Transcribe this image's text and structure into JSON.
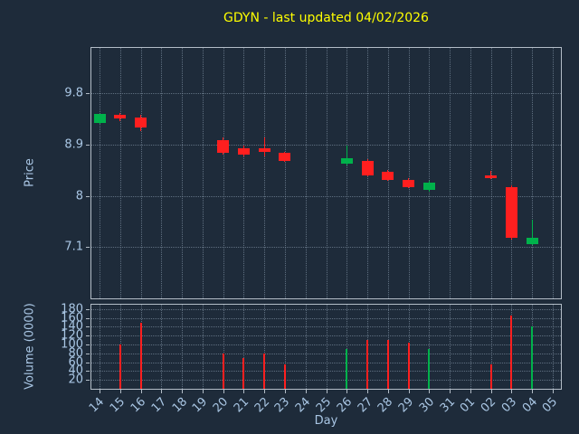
{
  "colors": {
    "up": "#00b24b",
    "down": "#ff1f1f",
    "background": "#1e2b3a",
    "grid": "#96a8ba",
    "frame": "#b3bdc7",
    "tick_label": "#a9c6e4",
    "title": "#ffff00"
  },
  "chart_data": [
    {
      "type": "candlestick",
      "title": "GDYN - last updated 04/02/2026",
      "xlabel": "Day",
      "ylabel": "Price",
      "ytick_values": [
        9.8,
        8.9,
        8,
        7.1
      ],
      "ylim": [
        6.2,
        10.6
      ],
      "grid": true,
      "categories": [
        "14",
        "15",
        "16",
        "17",
        "18",
        "19",
        "20",
        "21",
        "22",
        "23",
        "24",
        "25",
        "26",
        "27",
        "28",
        "29",
        "30",
        "31",
        "01",
        "02",
        "03",
        "04",
        "05"
      ],
      "candles": [
        {
          "day": "14",
          "open": 9.28,
          "high": 9.44,
          "low": 9.26,
          "close": 9.44
        },
        {
          "day": "15",
          "open": 9.42,
          "high": 9.46,
          "low": 9.32,
          "close": 9.36
        },
        {
          "day": "16",
          "open": 9.38,
          "high": 9.42,
          "low": 9.14,
          "close": 9.2
        },
        {
          "day": "20",
          "open": 8.98,
          "high": 9.02,
          "low": 8.72,
          "close": 8.76
        },
        {
          "day": "21",
          "open": 8.84,
          "high": 8.88,
          "low": 8.7,
          "close": 8.72
        },
        {
          "day": "22",
          "open": 8.84,
          "high": 9.02,
          "low": 8.7,
          "close": 8.78
        },
        {
          "day": "23",
          "open": 8.76,
          "high": 8.78,
          "low": 8.6,
          "close": 8.62
        },
        {
          "day": "26",
          "open": 8.56,
          "high": 8.88,
          "low": 8.54,
          "close": 8.66
        },
        {
          "day": "27",
          "open": 8.62,
          "high": 8.64,
          "low": 8.34,
          "close": 8.36
        },
        {
          "day": "28",
          "open": 8.42,
          "high": 8.46,
          "low": 8.26,
          "close": 8.28
        },
        {
          "day": "29",
          "open": 8.28,
          "high": 8.32,
          "low": 8.14,
          "close": 8.16
        },
        {
          "day": "30",
          "open": 8.1,
          "high": 8.26,
          "low": 8.08,
          "close": 8.24
        },
        {
          "day": "02",
          "open": 8.36,
          "high": 8.44,
          "low": 8.3,
          "close": 8.31
        },
        {
          "day": "03",
          "open": 8.16,
          "high": 8.18,
          "low": 7.24,
          "close": 7.26
        },
        {
          "day": "04",
          "open": 7.16,
          "high": 7.58,
          "low": 7.14,
          "close": 7.26
        }
      ]
    },
    {
      "type": "bar",
      "ylabel": "Volume (0000)",
      "ytick_values": [
        180,
        160,
        140,
        120,
        100,
        80,
        60,
        40,
        20
      ],
      "ylim": [
        0,
        190
      ],
      "grid": true,
      "bars": [
        {
          "day": "15",
          "value": 100
        },
        {
          "day": "16",
          "value": 150
        },
        {
          "day": "20",
          "value": 80
        },
        {
          "day": "21",
          "value": 70
        },
        {
          "day": "22",
          "value": 80
        },
        {
          "day": "23",
          "value": 55
        },
        {
          "day": "26",
          "value": 90
        },
        {
          "day": "27",
          "value": 110
        },
        {
          "day": "28",
          "value": 110
        },
        {
          "day": "29",
          "value": 105
        },
        {
          "day": "30",
          "value": 90
        },
        {
          "day": "02",
          "value": 55
        },
        {
          "day": "03",
          "value": 165
        },
        {
          "day": "04",
          "value": 140
        }
      ]
    }
  ]
}
